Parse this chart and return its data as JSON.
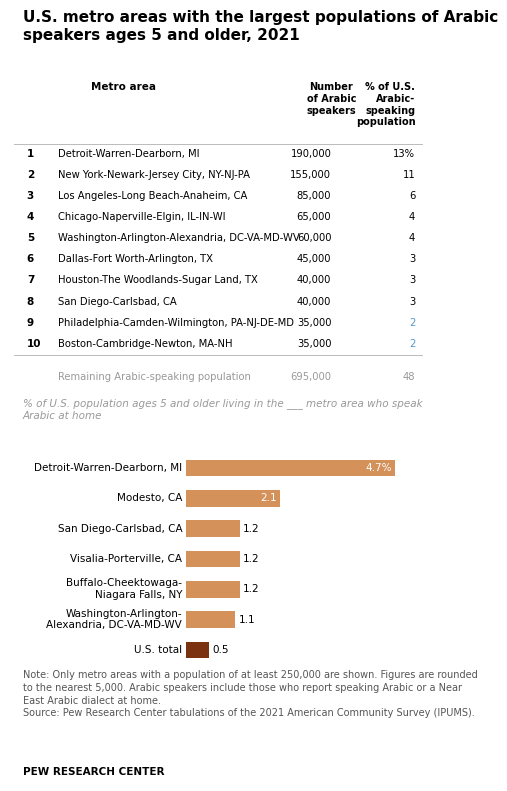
{
  "title_line1": "U.S. metro areas with the largest populations of Arabic",
  "title_line2": "speakers ages 5 and older, 2021",
  "title_fontsize": 11.0,
  "background_color": "#ffffff",
  "table": {
    "header_col0": "Metro area",
    "header_col1": "Number\nof Arabic\nspeakers",
    "header_col2": "% of U.S.\nArabic-\nspeaking\npopulation",
    "ranks": [
      "1",
      "2",
      "3",
      "4",
      "5",
      "6",
      "7",
      "8",
      "9",
      "10"
    ],
    "metros": [
      "Detroit-Warren-Dearborn, MI",
      "New York-Newark-Jersey City, NY-NJ-PA",
      "Los Angeles-Long Beach-Anaheim, CA",
      "Chicago-Naperville-Elgin, IL-IN-WI",
      "Washington-Arlington-Alexandria, DC-VA-MD-WV",
      "Dallas-Fort Worth-Arlington, TX",
      "Houston-The Woodlands-Sugar Land, TX",
      "San Diego-Carlsbad, CA",
      "Philadelphia-Camden-Wilmington, PA-NJ-DE-MD",
      "Boston-Cambridge-Newton, MA-NH"
    ],
    "numbers": [
      "190,000",
      "155,000",
      "85,000",
      "65,000",
      "60,000",
      "45,000",
      "40,000",
      "40,000",
      "35,000",
      "35,000"
    ],
    "percents": [
      "13%",
      "11",
      "6",
      "4",
      "4",
      "3",
      "3",
      "3",
      "2",
      "2"
    ],
    "percent_colors": [
      "#000000",
      "#000000",
      "#000000",
      "#000000",
      "#000000",
      "#000000",
      "#000000",
      "#000000",
      "#5599CC",
      "#5599CC"
    ],
    "remaining_label": "Remaining Arabic-speaking population",
    "remaining_number": "695,000",
    "remaining_percent": "48"
  },
  "chart_subtitle": "% of U.S. population ages 5 and older living in the ___ metro area who speak\nArabic at home",
  "chart_subtitle_color": "#999999",
  "chart_bars": {
    "labels": [
      "Detroit-Warren-Dearborn, MI",
      "Modesto, CA",
      "San Diego-Carlsbad, CA",
      "Visalia-Porterville, CA",
      "Buffalo-Cheektowaga-\nNiagara Falls, NY",
      "Washington-Arlington-\nAlexandria, DC-VA-MD-WV",
      "U.S. total"
    ],
    "values": [
      4.7,
      2.1,
      1.2,
      1.2,
      1.2,
      1.1,
      0.5
    ],
    "value_labels": [
      "4.7%",
      "2.1",
      "1.2",
      "1.2",
      "1.2",
      "1.1",
      "0.5"
    ],
    "bar_color": "#D4915A",
    "us_total_color": "#7B3210"
  },
  "note_text": "Note: Only metro areas with a population of at least 250,000 are shown. Figures are rounded\nto the nearest 5,000. Arabic speakers include those who report speaking Arabic or a Near\nEast Arabic dialect at home.\nSource: Pew Research Center tabulations of the 2021 American Community Survey (IPUMS).",
  "source_label": "PEW RESEARCH CENTER",
  "note_fontsize": 7.0,
  "source_fontsize": 7.5
}
